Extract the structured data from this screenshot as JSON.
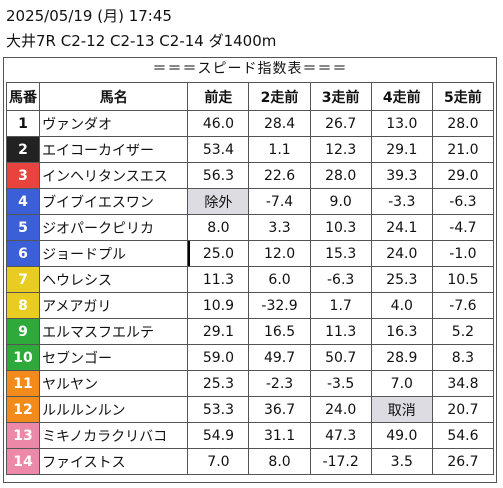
{
  "header": {
    "date_line": "2025/05/19 (月) 17:45",
    "race_line": "大井7R C2-12 C2-13 C2-14 ダ1400m"
  },
  "banner": "＝＝＝スピード指数表＝＝＝",
  "columns": [
    "馬番",
    "馬名",
    "前走",
    "2走前",
    "3走前",
    "4走前",
    "5走前"
  ],
  "frame_colors": {
    "1": "#ffffff",
    "2": "#222222",
    "3": "#e8433c",
    "4": "#3a5fd6",
    "5": "#3a5fd6",
    "6": "#3a5fd6",
    "7": "#e8cc22",
    "8": "#e8cc22",
    "9": "#2eaa3a",
    "10": "#2eaa3a",
    "11": "#f28a1c",
    "12": "#f28a1c",
    "13": "#ee88a8",
    "14": "#ee88a8"
  },
  "rows": [
    {
      "num": "1",
      "name": "ヴァンダオ",
      "v": [
        "46.0",
        "28.4",
        "26.7",
        "13.0",
        "28.0"
      ],
      "bg": "#ffffff",
      "fg": "#111111"
    },
    {
      "num": "2",
      "name": "エイコーカイザー",
      "v": [
        "53.4",
        "1.1",
        "12.3",
        "29.1",
        "21.0"
      ],
      "bg": "#222222",
      "fg": "#ffffff"
    },
    {
      "num": "3",
      "name": "インヘリタンスエス",
      "v": [
        "56.3",
        "22.6",
        "28.0",
        "39.3",
        "29.0"
      ],
      "bg": "#e8433c",
      "fg": "#ffffff"
    },
    {
      "num": "4",
      "name": "ブイブイエスワン",
      "v": [
        "除外",
        "-7.4",
        "9.0",
        "-3.3",
        "-6.3"
      ],
      "bg": "#3a5fd6",
      "fg": "#ffffff"
    },
    {
      "num": "5",
      "name": "ジオパークピリカ",
      "v": [
        "8.0",
        "3.3",
        "10.3",
        "24.1",
        "-4.7"
      ],
      "bg": "#3a5fd6",
      "fg": "#ffffff"
    },
    {
      "num": "6",
      "name": "ジョードプル",
      "v": [
        "25.0",
        "12.0",
        "15.3",
        "24.0",
        "-1.0"
      ],
      "bg": "#3a5fd6",
      "fg": "#ffffff"
    },
    {
      "num": "7",
      "name": "ヘウレシス",
      "v": [
        "11.3",
        "6.0",
        "-6.3",
        "25.3",
        "10.5"
      ],
      "bg": "#e8cc22",
      "fg": "#ffffff"
    },
    {
      "num": "8",
      "name": "アメアガリ",
      "v": [
        "10.9",
        "-32.9",
        "1.7",
        "4.0",
        "-7.6"
      ],
      "bg": "#e8cc22",
      "fg": "#ffffff"
    },
    {
      "num": "9",
      "name": "エルマスフエルテ",
      "v": [
        "29.1",
        "16.5",
        "11.3",
        "16.3",
        "5.2"
      ],
      "bg": "#2eaa3a",
      "fg": "#ffffff"
    },
    {
      "num": "10",
      "name": "セブンゴー",
      "v": [
        "59.0",
        "49.7",
        "50.7",
        "28.9",
        "8.3"
      ],
      "bg": "#2eaa3a",
      "fg": "#ffffff"
    },
    {
      "num": "11",
      "name": "ヤルヤン",
      "v": [
        "25.3",
        "-2.3",
        "-3.5",
        "7.0",
        "34.8"
      ],
      "bg": "#f28a1c",
      "fg": "#ffffff"
    },
    {
      "num": "12",
      "name": "ルルルンルン",
      "v": [
        "53.3",
        "36.7",
        "24.0",
        "取消",
        "20.7"
      ],
      "bg": "#f28a1c",
      "fg": "#ffffff"
    },
    {
      "num": "13",
      "name": "ミキノカラクリバコ",
      "v": [
        "54.9",
        "31.1",
        "47.3",
        "49.0",
        "54.6"
      ],
      "bg": "#ee88a8",
      "fg": "#ffffff"
    },
    {
      "num": "14",
      "name": "ファイストス",
      "v": [
        "7.0",
        "8.0",
        "-17.2",
        "3.5",
        "26.7"
      ],
      "bg": "#ee88a8",
      "fg": "#ffffff"
    }
  ]
}
